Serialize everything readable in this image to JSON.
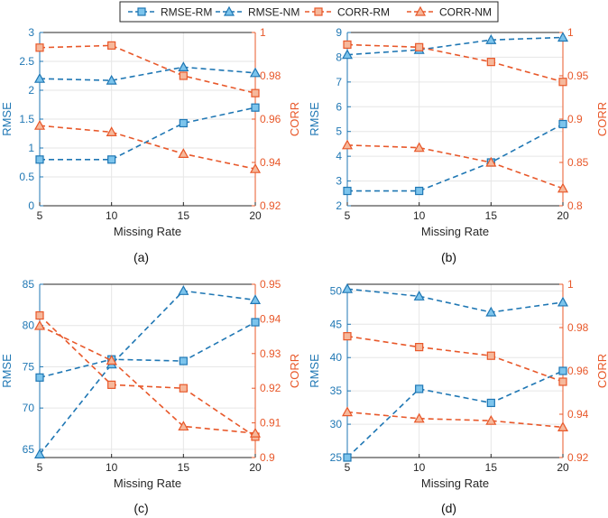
{
  "colors": {
    "rmse": "#1f77b4",
    "rmse_fill": "#7cc4ec",
    "corr": "#e8582a",
    "corr_fill": "#f6b89b",
    "grid": "#e6e6e6",
    "axis": "#262626"
  },
  "legend": {
    "entries": [
      {
        "label": "RMSE-RM",
        "series": "rmse",
        "marker": "square"
      },
      {
        "label": "RMSE-NM",
        "series": "rmse",
        "marker": "triangle"
      },
      {
        "label": "CORR-RM",
        "series": "corr",
        "marker": "square"
      },
      {
        "label": "CORR-NM",
        "series": "corr",
        "marker": "triangle"
      }
    ]
  },
  "chart_data": [
    {
      "type": "line",
      "caption": "(a)",
      "categories": [
        5,
        10,
        15,
        20
      ],
      "xlabel": "Missing Rate",
      "ylabel": "RMSE",
      "y2label": "CORR",
      "ylim": [
        0,
        3
      ],
      "yticks": [
        0,
        0.5,
        1,
        1.5,
        2,
        2.5,
        3
      ],
      "yticklabels": [
        "0",
        "0.5",
        "1",
        "1.5",
        "2",
        "2.5",
        "3"
      ],
      "y2lim": [
        0.92,
        1.0
      ],
      "y2ticks": [
        0.92,
        0.94,
        0.96,
        0.98,
        1.0
      ],
      "y2ticklabels": [
        "0.92",
        "0.94",
        "0.96",
        "0.98",
        "1"
      ],
      "series": [
        {
          "name": "RMSE-RM",
          "axis": "left",
          "marker": "square",
          "values": [
            0.8,
            0.8,
            1.43,
            1.7
          ]
        },
        {
          "name": "RMSE-NM",
          "axis": "left",
          "marker": "triangle",
          "values": [
            2.2,
            2.17,
            2.4,
            2.3
          ]
        },
        {
          "name": "CORR-RM",
          "axis": "right",
          "marker": "square",
          "values": [
            0.993,
            0.994,
            0.98,
            0.972
          ]
        },
        {
          "name": "CORR-NM",
          "axis": "right",
          "marker": "triangle",
          "values": [
            0.957,
            0.954,
            0.944,
            0.937
          ]
        }
      ]
    },
    {
      "type": "line",
      "caption": "(b)",
      "categories": [
        5,
        10,
        15,
        20
      ],
      "xlabel": "Missing Rate",
      "ylabel": "RMSE",
      "y2label": "CORR",
      "ylim": [
        2,
        9
      ],
      "yticks": [
        2,
        3,
        4,
        5,
        6,
        7,
        8,
        9
      ],
      "yticklabels": [
        "2",
        "3",
        "4",
        "5",
        "6",
        "7",
        "8",
        "9"
      ],
      "y2lim": [
        0.8,
        1.0
      ],
      "y2ticks": [
        0.8,
        0.85,
        0.9,
        0.95,
        1.0
      ],
      "y2ticklabels": [
        "0.8",
        "0.85",
        "0.9",
        "0.95",
        "1"
      ],
      "series": [
        {
          "name": "RMSE-RM",
          "axis": "left",
          "marker": "square",
          "values": [
            2.6,
            2.6,
            3.75,
            5.3
          ]
        },
        {
          "name": "RMSE-NM",
          "axis": "left",
          "marker": "triangle",
          "values": [
            8.1,
            8.3,
            8.7,
            8.8
          ]
        },
        {
          "name": "CORR-RM",
          "axis": "right",
          "marker": "square",
          "values": [
            0.986,
            0.983,
            0.966,
            0.943
          ]
        },
        {
          "name": "CORR-NM",
          "axis": "right",
          "marker": "triangle",
          "values": [
            0.87,
            0.867,
            0.85,
            0.82
          ]
        }
      ]
    },
    {
      "type": "line",
      "caption": "(c)",
      "categories": [
        5,
        10,
        15,
        20
      ],
      "xlabel": "Missing Rate",
      "ylabel": "RMSE",
      "y2label": "CORR",
      "ylim": [
        64,
        85
      ],
      "yticks": [
        65,
        70,
        75,
        80,
        85
      ],
      "yticklabels": [
        "65",
        "70",
        "75",
        "80",
        "85"
      ],
      "y2lim": [
        0.9,
        0.95
      ],
      "y2ticks": [
        0.9,
        0.91,
        0.92,
        0.93,
        0.94,
        0.95
      ],
      "y2ticklabels": [
        "0.9",
        "0.91",
        "0.92",
        "0.93",
        "0.94",
        "0.95"
      ],
      "series": [
        {
          "name": "RMSE-RM",
          "axis": "left",
          "marker": "square",
          "values": [
            73.7,
            75.9,
            75.7,
            80.4
          ]
        },
        {
          "name": "RMSE-NM",
          "axis": "left",
          "marker": "triangle",
          "values": [
            64.4,
            75.3,
            84.2,
            83.1
          ]
        },
        {
          "name": "CORR-RM",
          "axis": "right",
          "marker": "square",
          "values": [
            0.941,
            0.921,
            0.92,
            0.906
          ]
        },
        {
          "name": "CORR-NM",
          "axis": "right",
          "marker": "triangle",
          "values": [
            0.938,
            0.928,
            0.909,
            0.907
          ]
        }
      ]
    },
    {
      "type": "line",
      "caption": "(d)",
      "categories": [
        5,
        10,
        15,
        20
      ],
      "xlabel": "Missing Rate",
      "ylabel": "RMSE",
      "y2label": "CORR",
      "ylim": [
        25,
        51
      ],
      "yticks": [
        25,
        30,
        35,
        40,
        45,
        50
      ],
      "yticklabels": [
        "25",
        "30",
        "35",
        "40",
        "45",
        "50"
      ],
      "y2lim": [
        0.92,
        1.0
      ],
      "y2ticks": [
        0.92,
        0.94,
        0.96,
        0.98,
        1.0
      ],
      "y2ticklabels": [
        "0.92",
        "0.94",
        "0.96",
        "0.98",
        "1"
      ],
      "series": [
        {
          "name": "RMSE-RM",
          "axis": "left",
          "marker": "square",
          "values": [
            25,
            35.3,
            33.2,
            38
          ]
        },
        {
          "name": "RMSE-NM",
          "axis": "left",
          "marker": "triangle",
          "values": [
            50.3,
            49.2,
            46.8,
            48.3
          ]
        },
        {
          "name": "CORR-RM",
          "axis": "right",
          "marker": "square",
          "values": [
            0.976,
            0.971,
            0.967,
            0.955
          ]
        },
        {
          "name": "CORR-NM",
          "axis": "right",
          "marker": "triangle",
          "values": [
            0.941,
            0.938,
            0.937,
            0.934
          ]
        }
      ]
    }
  ]
}
